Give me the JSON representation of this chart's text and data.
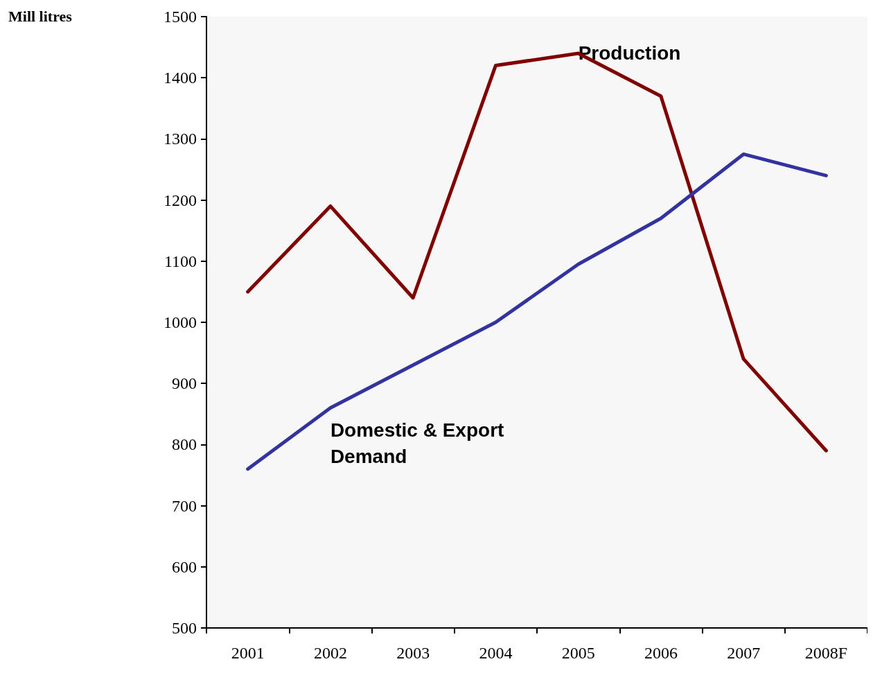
{
  "chart_data": {
    "type": "line",
    "categories": [
      "2001",
      "2002",
      "2003",
      "2004",
      "2005",
      "2006",
      "2007",
      "2008F"
    ],
    "series": [
      {
        "color": "#800000",
        "values": [
          1050,
          1190,
          1040,
          1420,
          1440,
          1370,
          940,
          790
        ]
      },
      {
        "color": "#3333a0",
        "values": [
          760,
          860,
          930,
          1000,
          1095,
          1170,
          1275,
          1240
        ]
      }
    ],
    "annotations": [
      "Mill litres",
      "Production",
      "Domestic & Export\nDemand"
    ],
    "ylim": [
      500,
      1500
    ],
    "yticks": [
      500,
      600,
      700,
      800,
      900,
      1000,
      1100,
      1200,
      1300,
      1400,
      1500
    ],
    "grid": false,
    "marker": "none"
  }
}
